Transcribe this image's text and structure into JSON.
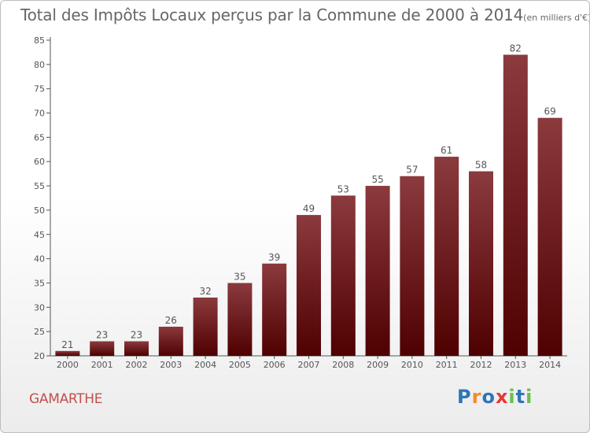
{
  "title": {
    "main": "Total des Impôts Locaux perçus par la Commune de 2000 à 2014",
    "unit": "(en milliers d'€)"
  },
  "commune": "GAMARTHE",
  "logo": {
    "letters": [
      "P",
      "r",
      "o",
      "x",
      "i",
      "t",
      "i"
    ],
    "colors": [
      "#2e75b6",
      "#f28c28",
      "#2e75b6",
      "#e53935",
      "#6abf4b",
      "#2e75b6",
      "#6abf4b"
    ]
  },
  "colors": {
    "bar_top": "#8b3a3e",
    "bar_bottom": "#4f0000",
    "axis": "#555555",
    "text": "#555555",
    "commune": "#c0504d"
  },
  "chart_data": {
    "type": "bar",
    "categories": [
      "2000",
      "2001",
      "2002",
      "2003",
      "2004",
      "2005",
      "2006",
      "2007",
      "2008",
      "2009",
      "2010",
      "2011",
      "2012",
      "2013",
      "2014"
    ],
    "values": [
      21,
      23,
      23,
      26,
      32,
      35,
      39,
      49,
      53,
      55,
      57,
      61,
      58,
      82,
      69
    ],
    "yticks": [
      20,
      25,
      30,
      35,
      40,
      45,
      50,
      55,
      60,
      65,
      70,
      75,
      80,
      85
    ],
    "ylim": [
      20,
      85
    ],
    "grid": false,
    "legend": "none"
  }
}
